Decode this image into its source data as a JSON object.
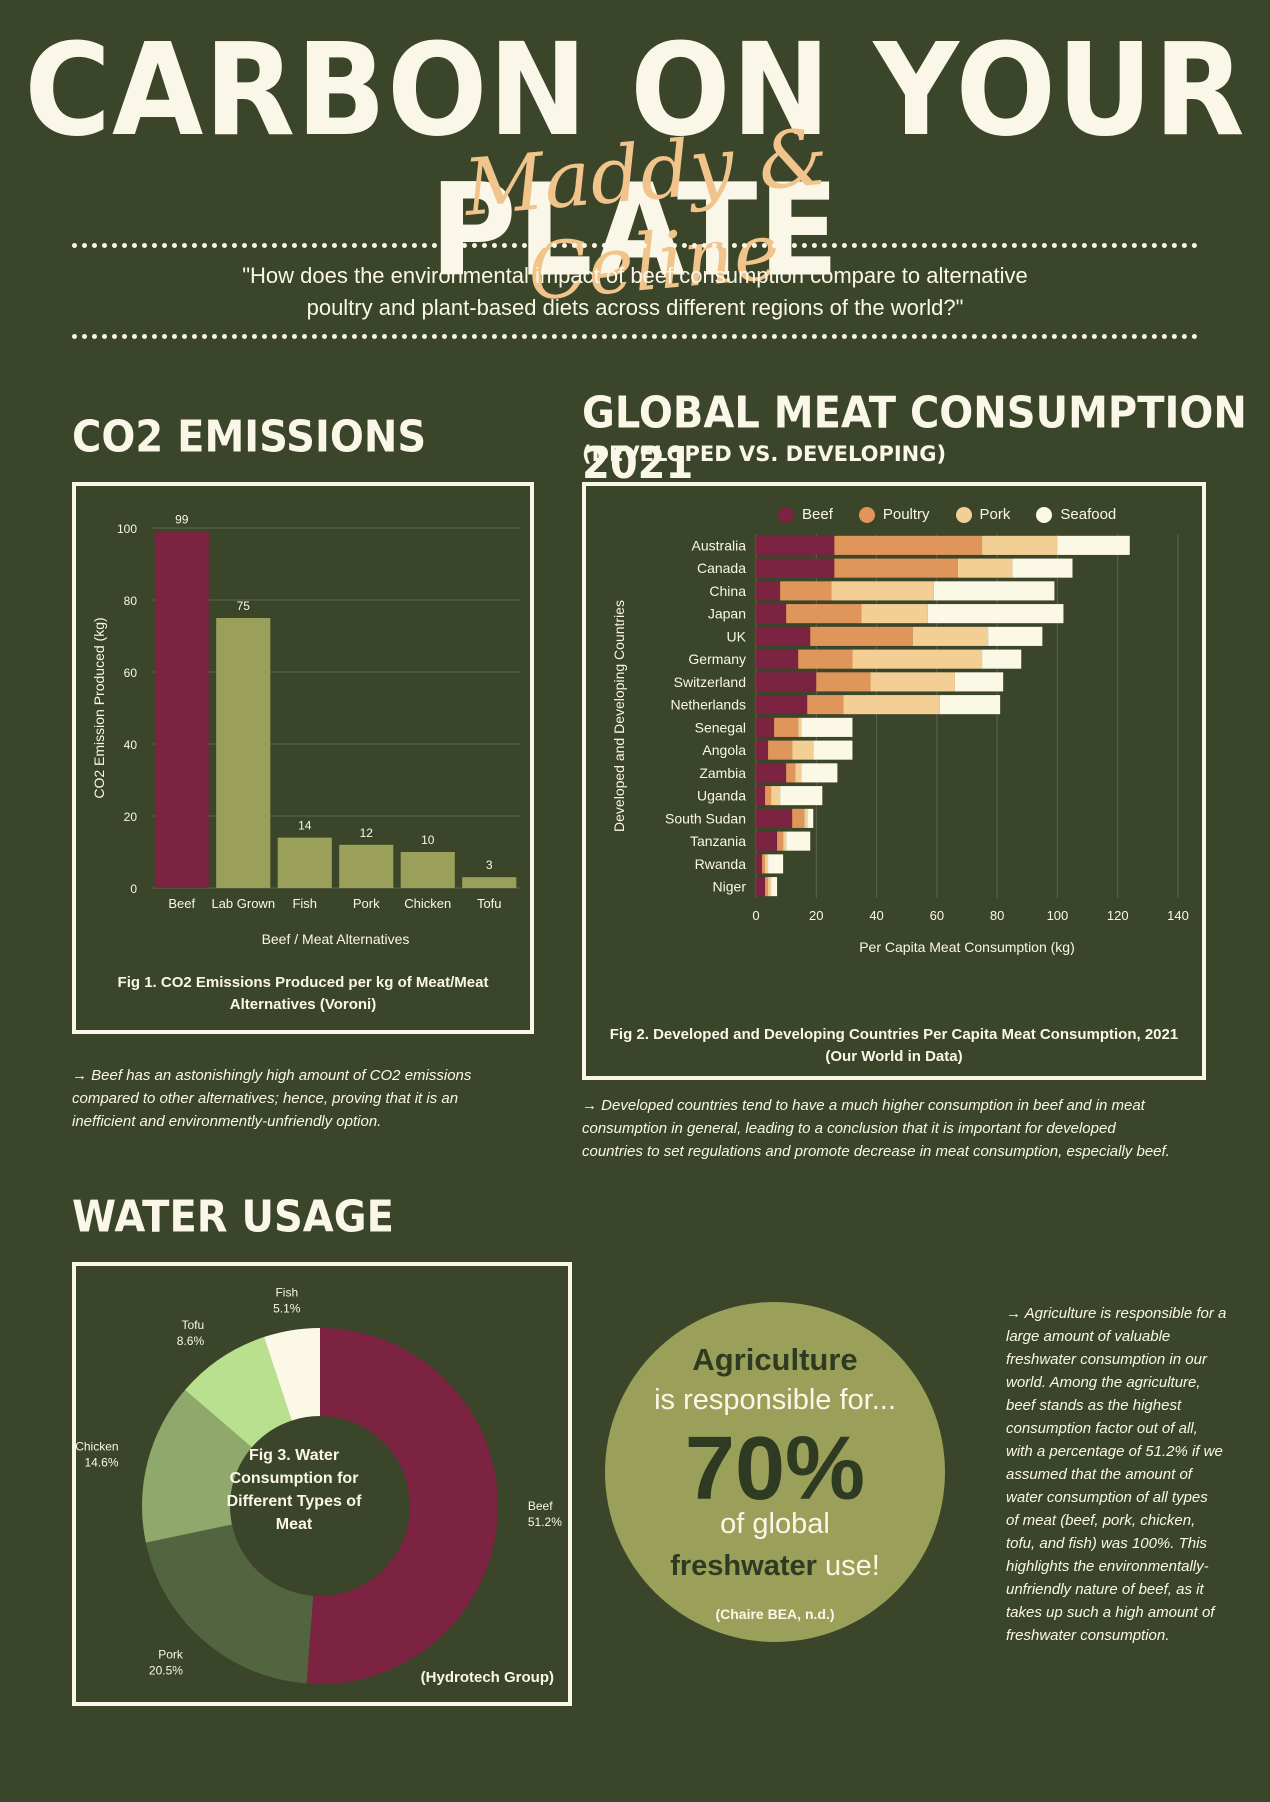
{
  "title": "CARBON ON YOUR PLATE",
  "authors": "Maddy & Celine",
  "question_line1": "\"How does the environmental impact of beef consumption compare to alternative",
  "question_line2": "poultry and plant-based diets across different regions of the world?\"",
  "co2": {
    "heading": "CO2 EMISSIONS",
    "caption_line1": "Fig 1. CO2 Emissions Produced per kg of Meat/Meat",
    "caption_line2": "Alternatives (Voroni)",
    "note_line1": "→ Beef has an astonishingly high amount of CO2 emissions",
    "note_line2": "compared to other alternatives; hence, proving that it is an",
    "note_line3": "inefficient and environmently-unfriendly option."
  },
  "meat": {
    "heading": "GLOBAL MEAT CONSUMPTION 2021",
    "subheading": "(DEVELOPED VS. DEVELOPING)",
    "caption_line1": "Fig 2. Developed and Developing  Countries Per Capita Meat Consumption, 2021",
    "caption_line2": "(Our World in Data)",
    "note_line1": "→ Developed countries tend to have a much higher consumption in beef and in meat",
    "note_line2": "consumption in general, leading to a conclusion that it is important for developed",
    "note_line3": "countries to set regulations and promote decrease in meat consumption, especially beef."
  },
  "water": {
    "heading": "WATER USAGE",
    "source": "(Hydrotech Group)",
    "center_line1": "Fig 3. Water",
    "center_line2": "Consumption for",
    "center_line3": "Different Types of",
    "center_line4": "Meat"
  },
  "agri": {
    "line1": "Agriculture",
    "line2": "is responsible for...",
    "big": "70%",
    "line3": "of global",
    "line4_bold": "freshwater",
    "line4_rest": " use!",
    "source": "(Chaire BEA, n.d.)"
  },
  "agri_note": [
    "→ Agriculture is responsible for a",
    "large amount of valuable",
    "freshwater consumption in our",
    "world. Among the agriculture,",
    "beef stands as the highest",
    "consumption factor out of all,",
    "with a percentage of 51.2% if we",
    "assumed that the amount of",
    "water consumption of all types",
    "of meat (beef, pork, chicken,",
    "tofu, and fish) was 100%. This",
    "highlights the environmentally-",
    "unfriendly nature of beef, as it",
    "takes up such a high amount of",
    "freshwater consumption."
  ],
  "colors": {
    "beef": "#7b2340",
    "bar_alt": "#9aa05a",
    "poultry": "#e0955a",
    "pork": "#f4cf95",
    "seafood": "#fcf8e6",
    "pie_pork": "#526440",
    "pie_chicken": "#8fa86c",
    "pie_tofu": "#b9e08f",
    "pie_fish": "#fcf8e6"
  },
  "chart_data": [
    {
      "type": "bar",
      "categories": [
        "Beef",
        "Lab Grown",
        "Fish",
        "Pork",
        "Chicken",
        "Tofu"
      ],
      "values": [
        99,
        75,
        14,
        12,
        10,
        3
      ],
      "xlabel": "Beef / Meat Alternatives",
      "ylabel": "CO2 Emission Produced (kg)",
      "ylim": [
        0,
        100
      ],
      "yticks": [
        0,
        20,
        40,
        60,
        80,
        100
      ],
      "grid": true
    },
    {
      "type": "bar",
      "orientation": "horizontal",
      "stacked": true,
      "categories": [
        "Australia",
        "Canada",
        "China",
        "Japan",
        "UK",
        "Germany",
        "Switzerland",
        "Netherlands",
        "Senegal",
        "Angola",
        "Zambia",
        "Uganda",
        "South Sudan",
        "Tanzania",
        "Rwanda",
        "Niger"
      ],
      "series": [
        {
          "name": "Beef",
          "values": [
            26,
            26,
            8,
            10,
            18,
            14,
            20,
            17,
            6,
            4,
            10,
            3,
            12,
            7,
            2,
            3
          ]
        },
        {
          "name": "Poultry",
          "values": [
            49,
            41,
            17,
            25,
            34,
            18,
            18,
            12,
            8,
            8,
            3,
            2,
            4,
            2,
            1,
            1
          ]
        },
        {
          "name": "Pork",
          "values": [
            25,
            18,
            34,
            22,
            25,
            43,
            28,
            32,
            1,
            7,
            2,
            3,
            1,
            1,
            1,
            1
          ]
        },
        {
          "name": "Seafood",
          "values": [
            24,
            20,
            40,
            45,
            18,
            13,
            16,
            20,
            17,
            13,
            12,
            14,
            2,
            8,
            5,
            2
          ]
        }
      ],
      "xlabel": "Per Capita Meat Consumption (kg)",
      "ylabel": "Developed and Developing Countries",
      "xlim": [
        0,
        140
      ],
      "xticks": [
        0,
        20,
        40,
        60,
        80,
        100,
        120,
        140
      ],
      "legend": "top",
      "grid": true
    },
    {
      "type": "pie",
      "donut": true,
      "categories": [
        "Beef",
        "Pork",
        "Chicken",
        "Tofu",
        "Fish"
      ],
      "values": [
        51.2,
        20.5,
        14.6,
        8.6,
        5.1
      ],
      "labels": [
        "51.2%",
        "20.5%",
        "14.6%",
        "8.6%",
        "5.1%"
      ]
    }
  ]
}
